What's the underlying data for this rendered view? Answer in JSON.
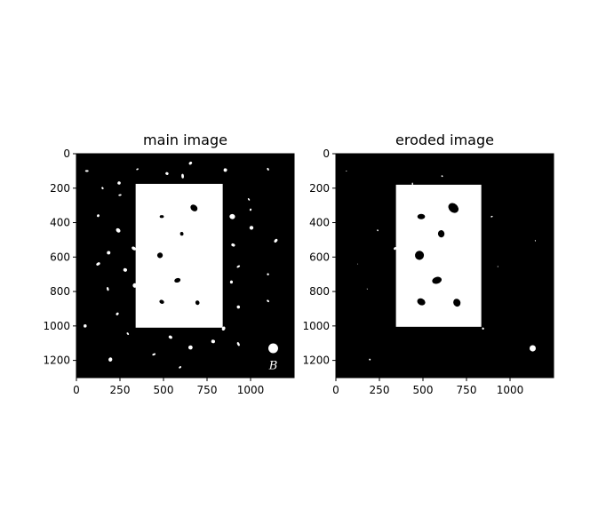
{
  "chart_data": [
    {
      "type": "image",
      "title": "main image",
      "image_size": [
        1250,
        1300
      ],
      "xlim": [
        0,
        1250
      ],
      "ylim": [
        1300,
        0
      ],
      "xticks": [
        0,
        250,
        500,
        750,
        1000
      ],
      "yticks": [
        0,
        200,
        400,
        600,
        800,
        1000,
        1200
      ],
      "background_color": "#000000",
      "foreground_color": "#ffffff",
      "rectangle": {
        "x0": 340,
        "x1": 840,
        "y0": 175,
        "y1": 1010
      },
      "holes": [
        {
          "x": 490,
          "y": 365,
          "r": 12
        },
        {
          "x": 675,
          "y": 315,
          "r": 22
        },
        {
          "x": 605,
          "y": 465,
          "r": 11
        },
        {
          "x": 480,
          "y": 590,
          "r": 16
        },
        {
          "x": 580,
          "y": 735,
          "r": 18
        },
        {
          "x": 490,
          "y": 860,
          "r": 14
        },
        {
          "x": 695,
          "y": 865,
          "r": 13
        }
      ],
      "specks": [
        {
          "x": 60,
          "y": 100,
          "r": 10
        },
        {
          "x": 150,
          "y": 200,
          "r": 7
        },
        {
          "x": 245,
          "y": 170,
          "r": 9
        },
        {
          "x": 350,
          "y": 90,
          "r": 7
        },
        {
          "x": 520,
          "y": 115,
          "r": 9
        },
        {
          "x": 610,
          "y": 130,
          "r": 13
        },
        {
          "x": 655,
          "y": 55,
          "r": 10
        },
        {
          "x": 855,
          "y": 95,
          "r": 10
        },
        {
          "x": 1100,
          "y": 90,
          "r": 8
        },
        {
          "x": 125,
          "y": 360,
          "r": 8
        },
        {
          "x": 250,
          "y": 240,
          "r": 9
        },
        {
          "x": 240,
          "y": 445,
          "r": 14
        },
        {
          "x": 185,
          "y": 575,
          "r": 10
        },
        {
          "x": 125,
          "y": 640,
          "r": 12
        },
        {
          "x": 280,
          "y": 675,
          "r": 11
        },
        {
          "x": 180,
          "y": 785,
          "r": 11
        },
        {
          "x": 235,
          "y": 930,
          "r": 9
        },
        {
          "x": 50,
          "y": 1000,
          "r": 9
        },
        {
          "x": 295,
          "y": 1045,
          "r": 8
        },
        {
          "x": 195,
          "y": 1195,
          "r": 12
        },
        {
          "x": 445,
          "y": 1165,
          "r": 10
        },
        {
          "x": 540,
          "y": 1065,
          "r": 11
        },
        {
          "x": 655,
          "y": 1125,
          "r": 12
        },
        {
          "x": 595,
          "y": 1240,
          "r": 8
        },
        {
          "x": 785,
          "y": 1090,
          "r": 11
        },
        {
          "x": 930,
          "y": 1105,
          "r": 12
        },
        {
          "x": 845,
          "y": 1015,
          "r": 12
        },
        {
          "x": 930,
          "y": 890,
          "r": 9
        },
        {
          "x": 1100,
          "y": 855,
          "r": 8
        },
        {
          "x": 890,
          "y": 745,
          "r": 9
        },
        {
          "x": 930,
          "y": 655,
          "r": 10
        },
        {
          "x": 900,
          "y": 530,
          "r": 11
        },
        {
          "x": 1005,
          "y": 430,
          "r": 11
        },
        {
          "x": 1145,
          "y": 505,
          "r": 12
        },
        {
          "x": 895,
          "y": 365,
          "r": 16
        },
        {
          "x": 990,
          "y": 265,
          "r": 8
        },
        {
          "x": 1000,
          "y": 325,
          "r": 7
        },
        {
          "x": 1100,
          "y": 700,
          "r": 6
        },
        {
          "x": 330,
          "y": 550,
          "r": 14
        },
        {
          "x": 335,
          "y": 765,
          "r": 13
        }
      ],
      "disk": {
        "x": 1130,
        "y": 1130,
        "r": 28
      },
      "annotation": "B"
    },
    {
      "type": "image",
      "title": "eroded image",
      "image_size": [
        1250,
        1300
      ],
      "xlim": [
        0,
        1250
      ],
      "ylim": [
        1300,
        0
      ],
      "xticks": [
        0,
        250,
        500,
        750,
        1000
      ],
      "yticks": [
        0,
        200,
        400,
        600,
        800,
        1000,
        1200
      ],
      "background_color": "#000000",
      "foreground_color": "#ffffff",
      "rectangle": {
        "x0": 345,
        "x1": 835,
        "y0": 180,
        "y1": 1005
      },
      "holes": [
        {
          "x": 490,
          "y": 365,
          "r": 22
        },
        {
          "x": 675,
          "y": 315,
          "r": 32
        },
        {
          "x": 605,
          "y": 465,
          "r": 21
        },
        {
          "x": 480,
          "y": 590,
          "r": 26
        },
        {
          "x": 580,
          "y": 735,
          "r": 28
        },
        {
          "x": 490,
          "y": 860,
          "r": 24
        },
        {
          "x": 695,
          "y": 865,
          "r": 23
        }
      ],
      "specks": [
        {
          "x": 60,
          "y": 100,
          "r": 4
        },
        {
          "x": 240,
          "y": 445,
          "r": 5
        },
        {
          "x": 195,
          "y": 1195,
          "r": 5
        },
        {
          "x": 895,
          "y": 365,
          "r": 6
        },
        {
          "x": 610,
          "y": 130,
          "r": 5
        },
        {
          "x": 440,
          "y": 175,
          "r": 7
        },
        {
          "x": 340,
          "y": 550,
          "r": 9
        },
        {
          "x": 845,
          "y": 1015,
          "r": 6
        },
        {
          "x": 1145,
          "y": 505,
          "r": 4
        },
        {
          "x": 930,
          "y": 655,
          "r": 3
        },
        {
          "x": 125,
          "y": 640,
          "r": 3
        },
        {
          "x": 180,
          "y": 785,
          "r": 3
        }
      ],
      "disk": {
        "x": 1130,
        "y": 1130,
        "r": 18
      }
    }
  ]
}
